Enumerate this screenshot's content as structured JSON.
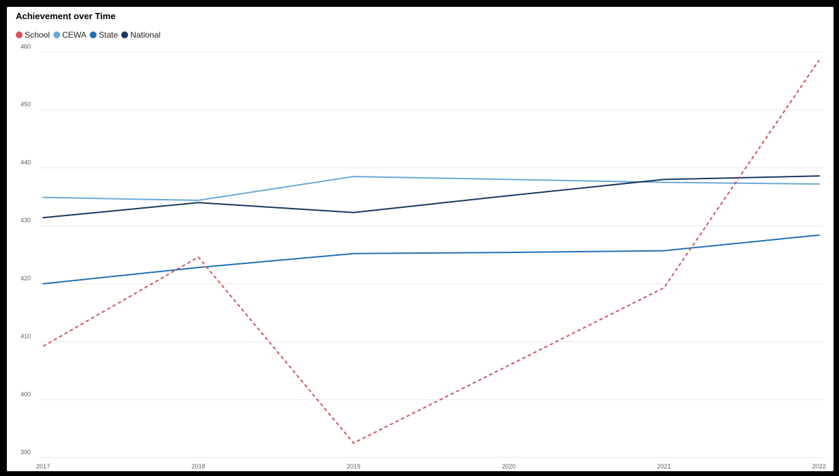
{
  "title": "Achievement over Time",
  "chart_data": {
    "type": "line",
    "title": "Achievement over Time",
    "xlabel": "",
    "ylabel": "",
    "categories": [
      "2017",
      "2018",
      "2019",
      "2020",
      "2021",
      "2022"
    ],
    "ylim": [
      390,
      460
    ],
    "yticks": [
      390,
      400,
      410,
      420,
      430,
      440,
      450,
      460
    ],
    "grid": true,
    "legend_position": "top-left",
    "series": [
      {
        "name": "School",
        "color": "#d6515b",
        "dashed": true,
        "values": [
          409.2,
          424.6,
          392.5,
          null,
          419.3,
          458.6
        ]
      },
      {
        "name": "CEWA",
        "color": "#6aa8d6",
        "dashed": false,
        "values": [
          434.9,
          434.4,
          438.5,
          438.0,
          437.5,
          437.2
        ]
      },
      {
        "name": "State",
        "color": "#1f6fb5",
        "dashed": false,
        "values": [
          420.0,
          422.8,
          425.2,
          425.4,
          425.7,
          428.4
        ]
      },
      {
        "name": "National",
        "color": "#17375e",
        "dashed": false,
        "values": [
          431.4,
          434.0,
          432.3,
          435.2,
          438.0,
          438.6
        ]
      }
    ]
  }
}
